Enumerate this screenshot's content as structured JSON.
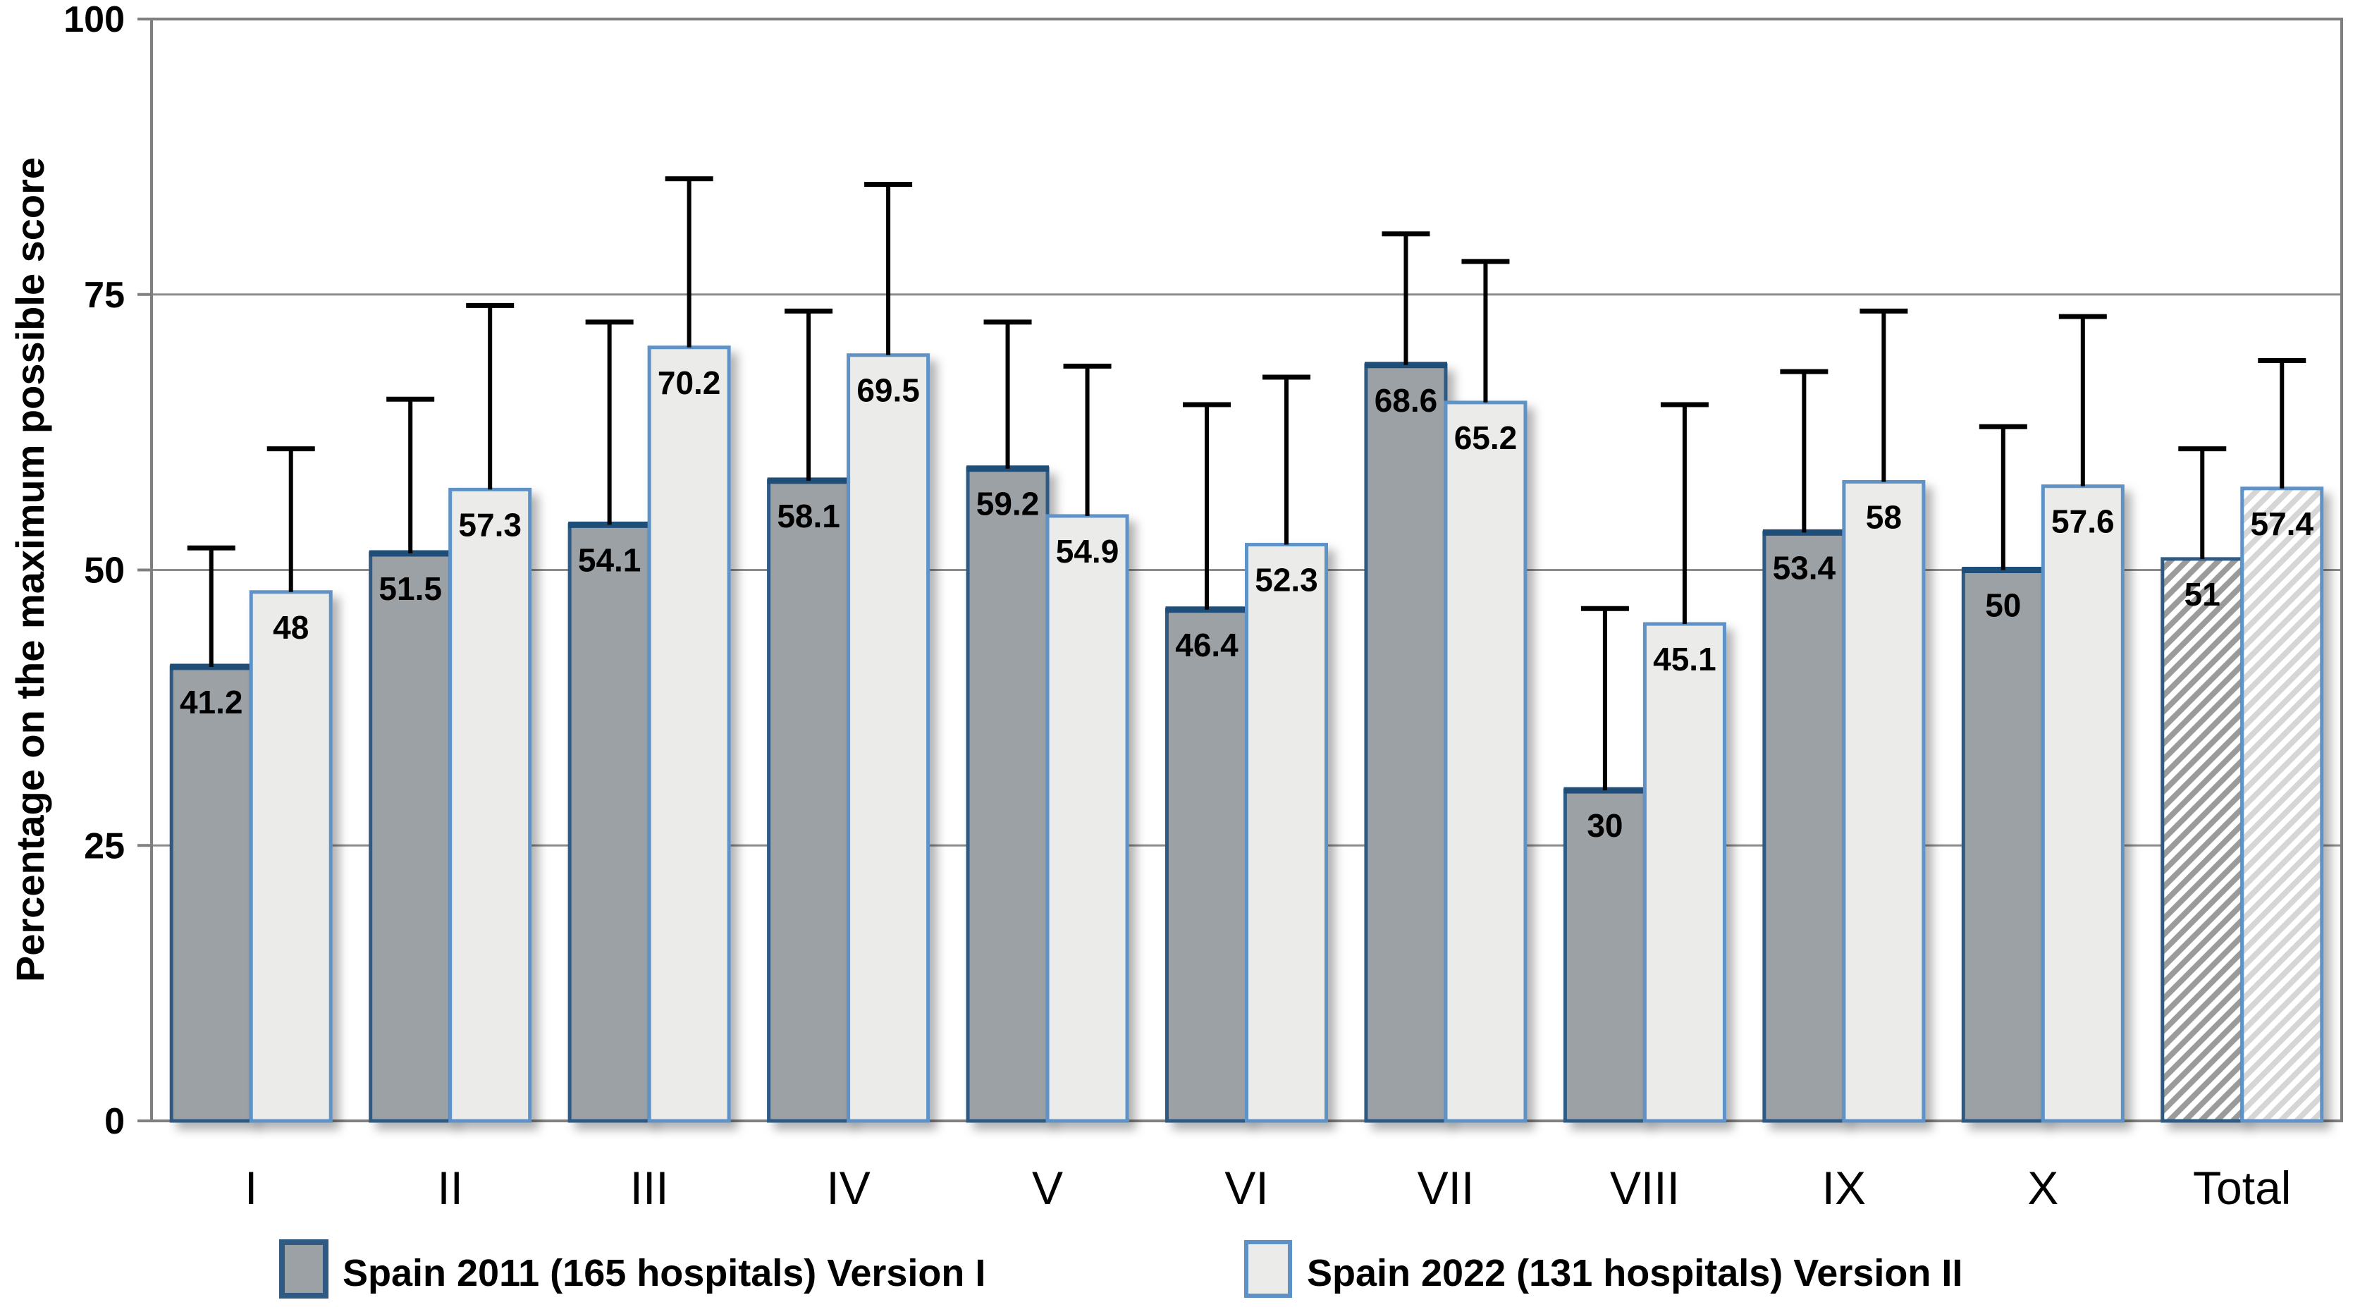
{
  "chart_data": {
    "type": "bar",
    "title": "",
    "xlabel": "",
    "ylabel": "Percentage on the maximum possible score",
    "ylim": [
      0,
      100
    ],
    "yticks": [
      0,
      25,
      50,
      75,
      100
    ],
    "grid": "horizontal",
    "legend_position": "bottom",
    "categories": [
      "I",
      "II",
      "III",
      "IV",
      "V",
      "VI",
      "VII",
      "VIII",
      "IX",
      "X",
      "Total"
    ],
    "hatched_categories": [
      "Total"
    ],
    "series": [
      {
        "name": "Spain 2011  (165 hospitals)  Version I",
        "values": [
          41.2,
          51.5,
          54.1,
          58.1,
          59.2,
          46.4,
          68.6,
          30,
          53.4,
          50,
          51
        ],
        "value_labels": [
          "41.2",
          "51.5",
          "54.1",
          "58.1",
          "59.2",
          "46.4",
          "68.6",
          "30",
          "53.4",
          "50",
          "51"
        ],
        "error_bar_tops": [
          52,
          65.5,
          72.5,
          73.5,
          72.5,
          65,
          80.5,
          46.5,
          68,
          63,
          61
        ],
        "fill_color": "#9CA1A5",
        "border_color": "#2E5A84",
        "top_edge_color": "#1F4E79",
        "hatch_stripe_color": "#9B9B9B"
      },
      {
        "name": "Spain 2022  (131 hospitals)  Version II",
        "values": [
          48,
          57.3,
          70.2,
          69.5,
          54.9,
          52.3,
          65.2,
          45.1,
          58,
          57.6,
          57.4
        ],
        "value_labels": [
          "48",
          "57.3",
          "70.2",
          "69.5",
          "54.9",
          "52.3",
          "65.2",
          "45.1",
          "58",
          "57.6",
          "57.4"
        ],
        "error_bar_tops": [
          61,
          74,
          85.5,
          85,
          68.5,
          67.5,
          78,
          65,
          73.5,
          73,
          69
        ],
        "fill_color": "#EBECE9",
        "border_color": "#5E92C6",
        "top_edge_color": "#5E92C6",
        "hatch_stripe_color": "#D6D6D6"
      }
    ],
    "error_bar_color": "#000000",
    "gridline_color": "#8C8C8C",
    "frame_color": "#7F7F7F",
    "background_color": "#FFFFFF"
  },
  "legend": {
    "items": [
      {
        "label": "Spain 2011  (165 hospitals)  Version I"
      },
      {
        "label": "Spain 2022  (131 hospitals)  Version II"
      }
    ]
  },
  "axis": {
    "y_title": "Percentage on the maximum possible score",
    "y_tick_labels": [
      "100",
      "75",
      "50",
      "25",
      "0"
    ]
  }
}
